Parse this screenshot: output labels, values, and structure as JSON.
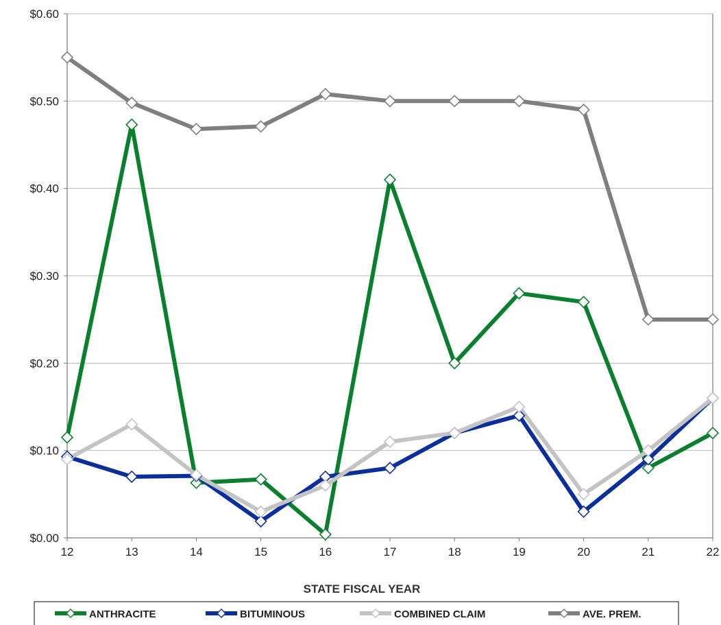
{
  "chart_data": {
    "type": "line",
    "title": "",
    "xlabel": "STATE FISCAL YEAR",
    "ylabel": "",
    "categories": [
      "12",
      "13",
      "14",
      "15",
      "16",
      "17",
      "18",
      "19",
      "20",
      "21",
      "22"
    ],
    "ylim": [
      0,
      0.6
    ],
    "yticks": [
      0,
      0.1,
      0.2,
      0.3,
      0.4,
      0.5,
      0.6
    ],
    "ytick_labels": [
      "$0.00",
      "$0.10",
      "$0.20",
      "$0.30",
      "$0.40",
      "$0.50",
      "$0.60"
    ],
    "grid": true,
    "legend_position": "bottom",
    "series": [
      {
        "name": "ANTHRACITE",
        "color": "#0a7f2e",
        "marker_color": "#0a7f2e",
        "values": [
          0.115,
          0.473,
          0.063,
          0.067,
          0.004,
          0.41,
          0.2,
          0.28,
          0.27,
          0.08,
          0.12
        ]
      },
      {
        "name": "BITUMINOUS",
        "color": "#0a2f9c",
        "marker_color": "#0a2f9c",
        "values": [
          0.093,
          0.07,
          0.071,
          0.019,
          0.07,
          0.08,
          0.12,
          0.14,
          0.03,
          0.09,
          0.16
        ]
      },
      {
        "name": "COMBINED CLAIM",
        "color": "#c4c4c4",
        "marker_color": "#c4c4c4",
        "values": [
          0.09,
          0.13,
          0.072,
          0.03,
          0.06,
          0.11,
          0.12,
          0.15,
          0.05,
          0.1,
          0.16
        ]
      },
      {
        "name": "AVE. PREM.",
        "color": "#7f7f7f",
        "marker_color": "#7f7f7f",
        "values": [
          0.55,
          0.498,
          0.468,
          0.471,
          0.508,
          0.5,
          0.5,
          0.5,
          0.49,
          0.25,
          0.25
        ]
      }
    ]
  }
}
